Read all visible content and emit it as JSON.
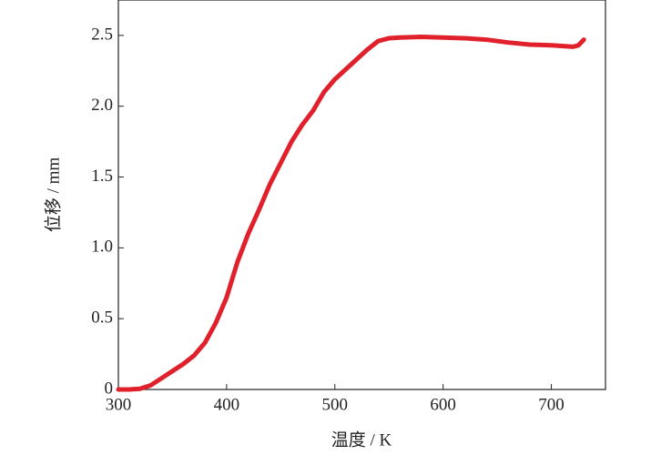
{
  "chart_data": {
    "type": "line",
    "x_label": "温度 / K",
    "y_label": "位移 / mm",
    "x": [
      300,
      310,
      320,
      330,
      340,
      350,
      360,
      370,
      380,
      390,
      400,
      410,
      420,
      430,
      440,
      450,
      460,
      470,
      480,
      490,
      500,
      510,
      520,
      530,
      540,
      550,
      560,
      580,
      600,
      620,
      640,
      660,
      680,
      700,
      720,
      725,
      730
    ],
    "series": [
      {
        "color": "#e0202a",
        "values": [
          0,
          0,
          0.005,
          0.03,
          0.08,
          0.13,
          0.18,
          0.24,
          0.33,
          0.47,
          0.65,
          0.9,
          1.1,
          1.27,
          1.45,
          1.6,
          1.75,
          1.87,
          1.97,
          2.1,
          2.19,
          2.26,
          2.33,
          2.4,
          2.46,
          2.48,
          2.485,
          2.49,
          2.485,
          2.48,
          2.47,
          2.45,
          2.435,
          2.43,
          2.42,
          2.43,
          2.47
        ]
      }
    ],
    "xlim": [
      300,
      750
    ],
    "ylim": [
      0,
      2.75
    ],
    "xticks": [
      300,
      400,
      500,
      600,
      700
    ],
    "yticks": [
      0,
      0.5,
      {
        "value": 1,
        "label": "1.0"
      },
      1.5,
      {
        "value": 2,
        "label": "2.0"
      },
      2.5
    ],
    "grid": false
  }
}
